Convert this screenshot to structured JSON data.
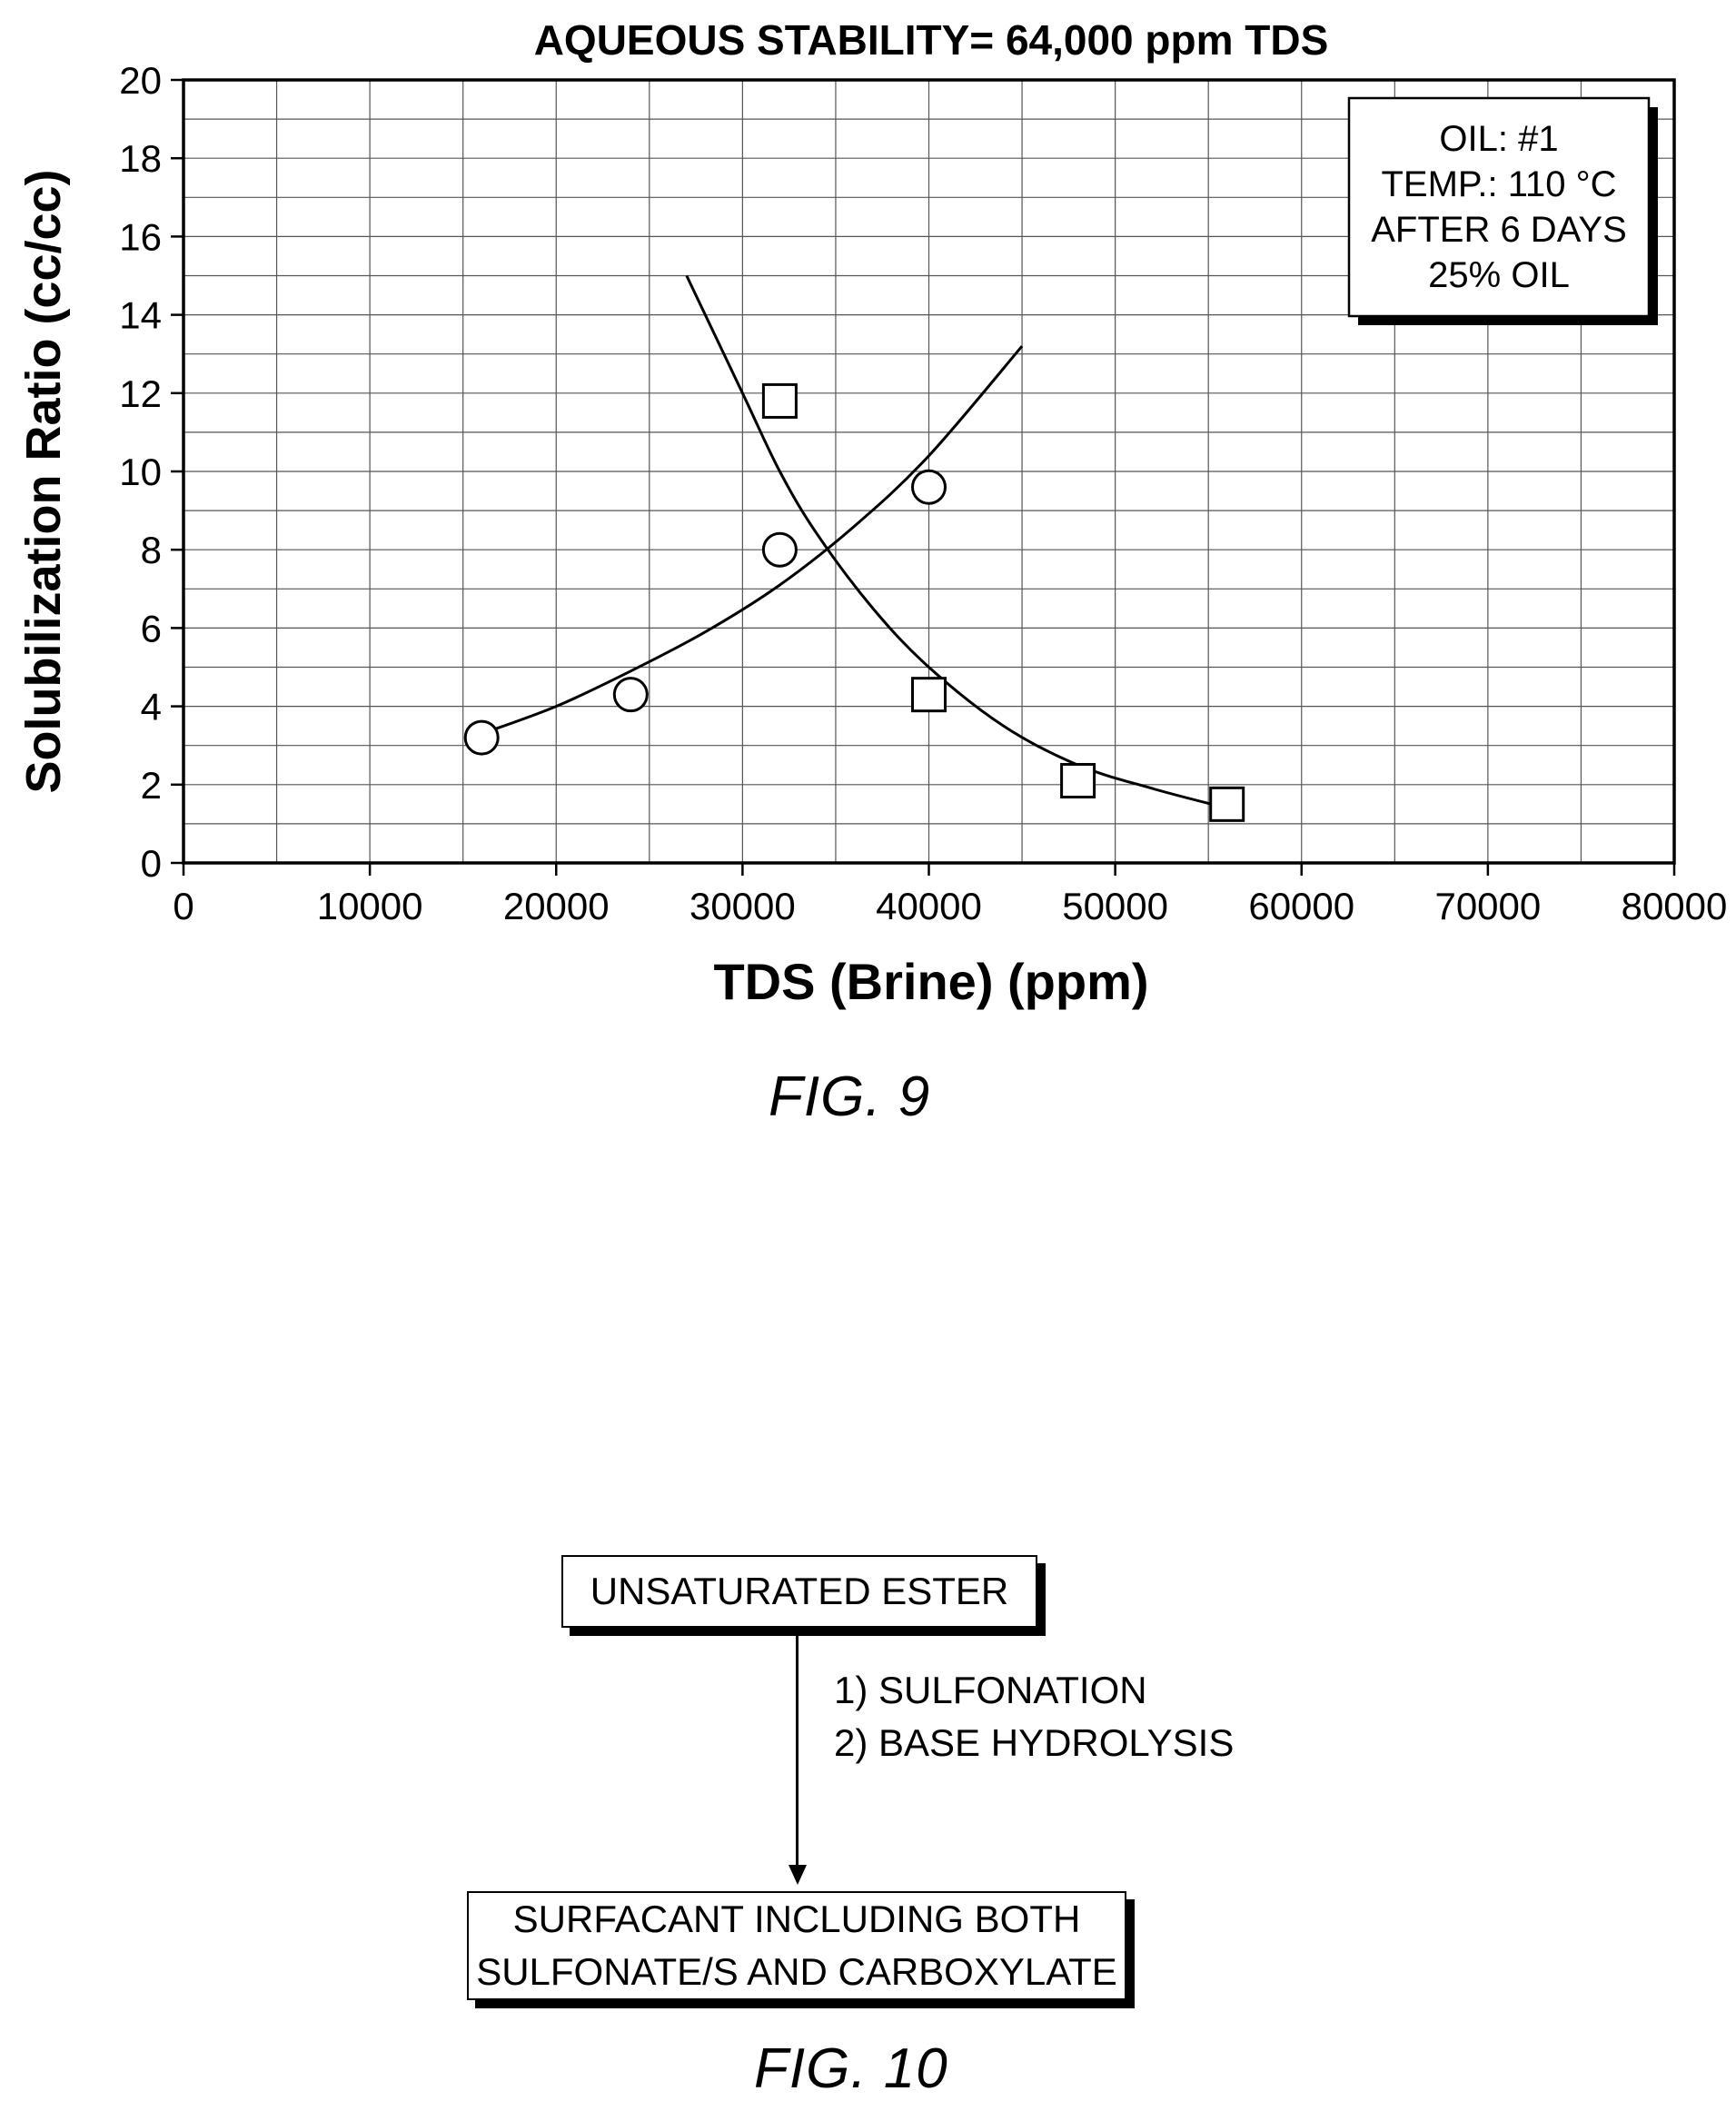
{
  "figures": {
    "fig9_label": "FIG. 9",
    "fig10_label": "FIG. 10"
  },
  "chart_data": {
    "type": "scatter",
    "title": "AQUEOUS STABILITY= 64,000 ppm TDS",
    "xlabel": "TDS (Brine) (ppm)",
    "ylabel": "Solubilization Ratio (cc/cc)",
    "xlim": [
      0,
      80000
    ],
    "ylim": [
      0,
      20
    ],
    "xticks": [
      0,
      10000,
      20000,
      30000,
      40000,
      50000,
      60000,
      70000,
      80000
    ],
    "yticks": [
      0,
      2,
      4,
      6,
      8,
      10,
      12,
      14,
      16,
      18,
      20
    ],
    "grid": true,
    "legend_box": {
      "position": "top-right",
      "lines": [
        "OIL: #1",
        "TEMP.: 110 °C",
        "AFTER 6 DAYS",
        "25% OIL"
      ]
    },
    "series": [
      {
        "marker": "circle",
        "x": [
          16000,
          24000,
          32000,
          40000
        ],
        "y": [
          3.2,
          4.3,
          8.0,
          9.6
        ],
        "fit": {
          "x": [
            16000,
            20000,
            24000,
            28000,
            32000,
            36000,
            40000,
            45000
          ],
          "y": [
            3.3,
            4.0,
            4.9,
            5.9,
            7.1,
            8.6,
            10.4,
            13.2
          ]
        }
      },
      {
        "marker": "square",
        "x": [
          32000,
          40000,
          48000,
          56000
        ],
        "y": [
          11.8,
          4.3,
          2.1,
          1.5
        ],
        "fit": {
          "x": [
            27000,
            30000,
            32000,
            34000,
            37000,
            40000,
            44000,
            48000,
            52000,
            56000
          ],
          "y": [
            15.0,
            12.0,
            10.0,
            8.4,
            6.5,
            5.0,
            3.5,
            2.5,
            1.9,
            1.4
          ]
        }
      }
    ]
  },
  "flow": {
    "start": "UNSATURATED ESTER",
    "steps": [
      "1) SULFONATION",
      "2) BASE HYDROLYSIS"
    ],
    "end_lines": [
      "SURFACANT INCLUDING BOTH",
      "SULFONATE/S AND CARBOXYLATE"
    ]
  }
}
